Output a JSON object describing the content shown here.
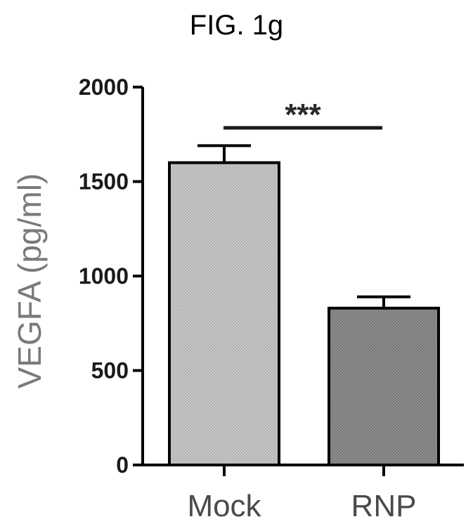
{
  "figure": {
    "title": "FIG. 1g"
  },
  "chart_data": {
    "type": "bar",
    "title": "FIG. 1g",
    "xlabel": "",
    "ylabel": "VEGFA (pg/ml)",
    "categories": [
      "Mock",
      "RNP"
    ],
    "values": [
      1600,
      830
    ],
    "error": [
      90,
      60
    ],
    "ylim": [
      0,
      2000
    ],
    "yticks": [
      0,
      500,
      1000,
      1500,
      2000
    ],
    "ytick_labels": [
      "0",
      "500",
      "1000",
      "1500",
      "2000"
    ],
    "grid": false,
    "significance": {
      "label": "***",
      "between": [
        "Mock",
        "RNP"
      ]
    },
    "colors": {
      "Mock": "#b8b8b8",
      "RNP": "#808080",
      "axis": "#000000",
      "ylabel": "#7a7a7a"
    }
  }
}
